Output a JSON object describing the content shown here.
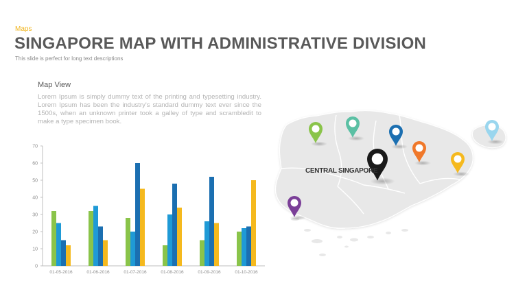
{
  "header": {
    "tag": "Maps",
    "title": "SINGAPORE  MAP WITH ADMINISTRATIVE DIVISION",
    "subtitle": "This slide is perfect for long text descriptions"
  },
  "panel": {
    "title": "Map View",
    "text": "Lorem Ipsum is simply dummy text of the printing and typesetting industry. Lorem Ipsum has been the industry's standard dummy text ever since the 1500s, when an unknown printer took a galley of type and scrambledit to make a type specimen book."
  },
  "map": {
    "central_label": "CENTRAL SINGAPORE",
    "pin_colors": [
      "#8ac44a",
      "#5bc0a4",
      "#1b6fb1",
      "#f0782a",
      "#f5b91e",
      "#9ad6ee",
      "#7b3f98",
      "#1a1a1a"
    ]
  },
  "chart_data": {
    "type": "bar",
    "categories": [
      "01-05-2016",
      "01-06-2016",
      "01-07-2016",
      "01-08-2016",
      "01-09-2016",
      "01-10-2016"
    ],
    "series": [
      {
        "color": "#8ac44a",
        "values": [
          32,
          32,
          28,
          12,
          15,
          20
        ]
      },
      {
        "color": "#1f9ad6",
        "values": [
          25,
          35,
          20,
          30,
          26,
          22
        ]
      },
      {
        "color": "#1b6fb1",
        "values": [
          15,
          23,
          60,
          48,
          52,
          23
        ]
      },
      {
        "color": "#f5b91e",
        "values": [
          12,
          15,
          45,
          34,
          25,
          50
        ]
      }
    ],
    "ylim": [
      0,
      70
    ],
    "yticks": [
      0,
      10,
      20,
      30,
      40,
      50,
      60,
      70
    ],
    "grid": false
  }
}
